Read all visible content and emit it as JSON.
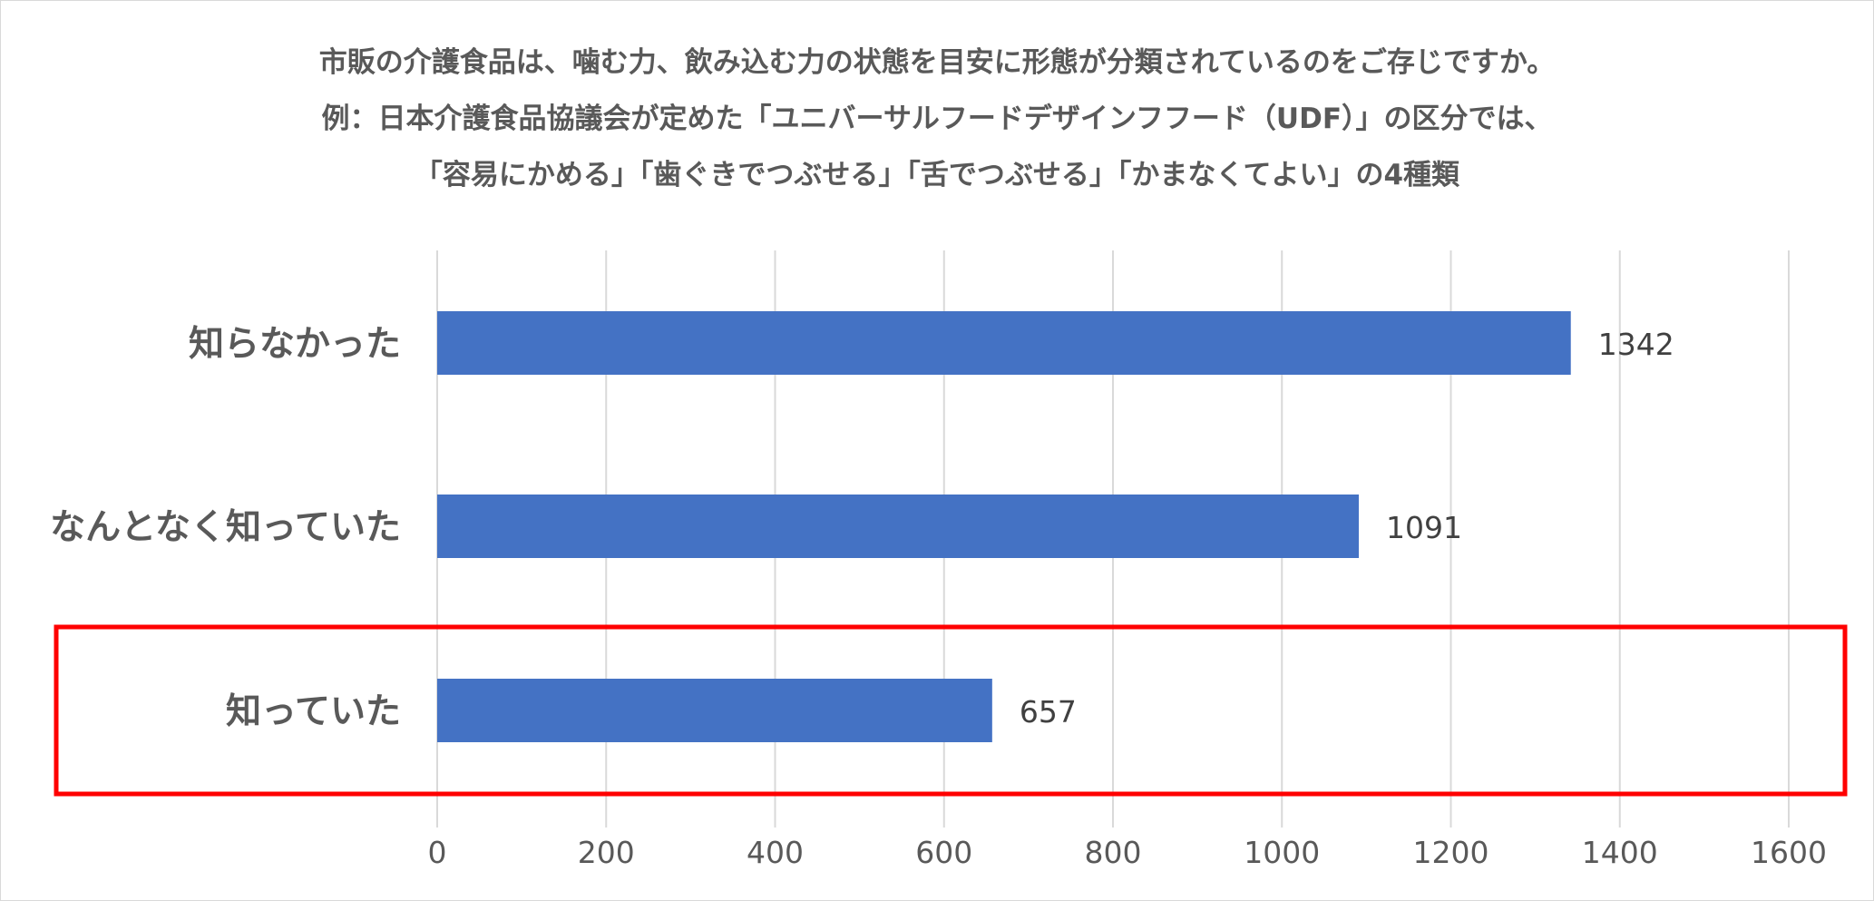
{
  "chart_data": {
    "type": "bar",
    "orientation": "horizontal",
    "title_lines": [
      "市販の介護食品は、噛む力、飲み込む力の状態を目安に形態が分類されているのをご存じですか。",
      "例：日本介護食品協議会が定めた「ユニバーサルフードデザインフフード（UDF）」の区分では、",
      "「容易にかめる」「歯ぐきでつぶせる」「舌でつぶせる」「かまなくてよい」の4種類"
    ],
    "categories": [
      "知らなかった",
      "なんとなく知っていた",
      "知っていた"
    ],
    "values": [
      1342,
      1091,
      657
    ],
    "data_labels": [
      "1342",
      "1091",
      "657"
    ],
    "xlim": [
      0,
      1600
    ],
    "x_ticks": [
      0,
      200,
      400,
      600,
      800,
      1000,
      1200,
      1400,
      1600
    ],
    "x_tick_labels": [
      "0",
      "200",
      "400",
      "600",
      "800",
      "1000",
      "1200",
      "1400",
      "1600"
    ],
    "grid": true,
    "bar_color": "#4472C4",
    "gridline_color": "#d9d9d9",
    "highlight": {
      "category": "知っていた",
      "color": "#FF0000"
    }
  }
}
